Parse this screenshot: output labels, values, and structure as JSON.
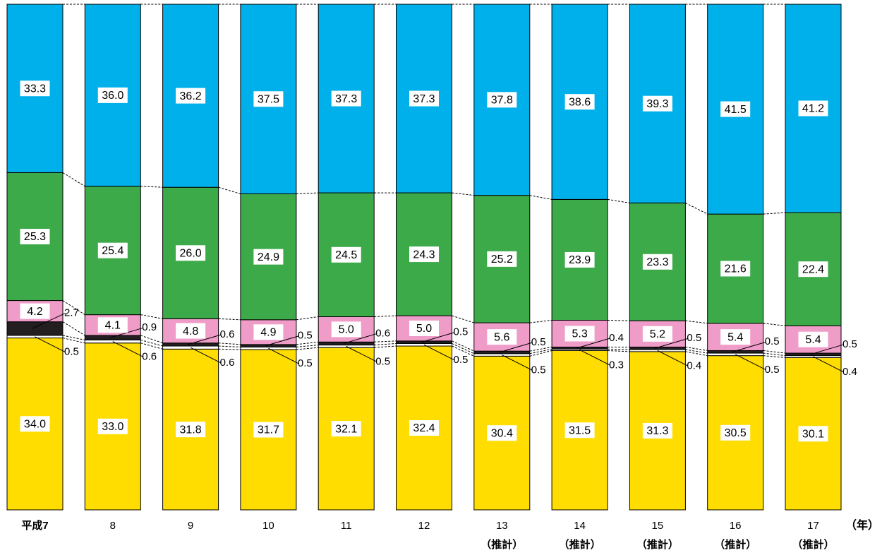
{
  "chart_data": {
    "type": "stacked_bar_100",
    "categories": [
      "平成7",
      "8",
      "9",
      "10",
      "11",
      "12",
      "13",
      "14",
      "15",
      "16",
      "17"
    ],
    "category_notes": [
      null,
      null,
      null,
      null,
      null,
      null,
      "（推計）",
      "（推計）",
      "（推計）",
      "（推計）",
      "（推計）"
    ],
    "x_unit": "（年）",
    "ylim": [
      0,
      100
    ],
    "series": [
      {
        "color": "#FFDD00",
        "label_style": "inside",
        "values": [
          34.0,
          33.0,
          31.8,
          31.7,
          32.1,
          32.4,
          30.4,
          31.5,
          31.3,
          30.5,
          30.1
        ],
        "value_labels": [
          "34.0",
          "33.0",
          "31.8",
          "31.7",
          "32.1",
          "32.4",
          "30.4",
          "31.5",
          "31.3",
          "30.5",
          "30.1"
        ]
      },
      {
        "color": "#FFFFFF",
        "label_style": "callout-low",
        "values": [
          0.5,
          0.6,
          0.6,
          0.5,
          0.5,
          0.5,
          0.5,
          0.3,
          0.4,
          0.5,
          0.4
        ]
      },
      {
        "color": "#231F20",
        "label_style": "callout-high",
        "values": [
          2.7,
          0.9,
          0.6,
          0.5,
          0.6,
          0.5,
          0.5,
          0.4,
          0.5,
          0.5,
          0.5
        ]
      },
      {
        "color": "#F09CC8",
        "label_style": "inside",
        "values": [
          4.2,
          4.1,
          4.8,
          4.9,
          5.0,
          5.0,
          5.6,
          5.3,
          5.2,
          5.4,
          5.4
        ],
        "value_labels": [
          "4.2",
          "4.1",
          "4.8",
          "4.9",
          "5.0",
          "5.0",
          "5.6",
          "5.3",
          "5.2",
          "5.4",
          "5.4"
        ]
      },
      {
        "color": "#3DAA4A",
        "label_style": "inside",
        "values": [
          25.3,
          25.4,
          26.0,
          24.9,
          24.5,
          24.3,
          25.2,
          23.9,
          23.3,
          21.6,
          22.4
        ],
        "value_labels": [
          "25.3",
          "25.4",
          "26.0",
          "24.9",
          "24.5",
          "24.3",
          "25.2",
          "23.9",
          "23.3",
          "21.6",
          "22.4"
        ]
      },
      {
        "color": "#00B0EA",
        "label_style": "inside",
        "values": [
          33.3,
          36.0,
          36.2,
          37.5,
          37.3,
          37.3,
          37.8,
          38.6,
          39.3,
          41.5,
          41.2
        ],
        "value_labels": [
          "33.3",
          "36.0",
          "36.2",
          "37.5",
          "37.3",
          "37.3",
          "37.8",
          "38.6",
          "39.3",
          "41.5",
          "41.2"
        ]
      }
    ]
  }
}
